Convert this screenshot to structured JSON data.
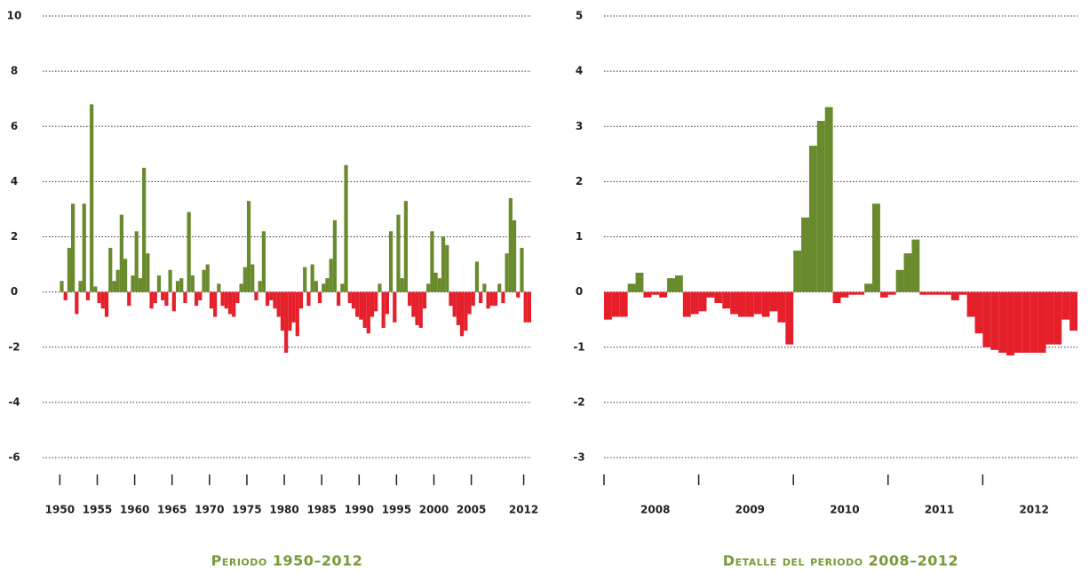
{
  "chart_data": [
    {
      "type": "bar",
      "title": "Periodo 1950–2012",
      "x": [
        1950,
        1950.5,
        1951,
        1951.5,
        1952,
        1952.5,
        1953,
        1953.5,
        1954,
        1954.5,
        1955,
        1955.5,
        1956,
        1956.5,
        1957,
        1957.5,
        1958,
        1958.5,
        1959,
        1959.5,
        1960,
        1960.5,
        1961,
        1961.5,
        1962,
        1962.5,
        1963,
        1963.5,
        1964,
        1964.5,
        1965,
        1965.5,
        1966,
        1966.5,
        1967,
        1967.5,
        1968,
        1968.5,
        1969,
        1969.5,
        1970,
        1970.5,
        1971,
        1971.5,
        1972,
        1972.5,
        1973,
        1973.5,
        1974,
        1974.5,
        1975,
        1975.5,
        1976,
        1976.5,
        1977,
        1977.5,
        1978,
        1978.5,
        1979,
        1979.5,
        1980,
        1980.5,
        1981,
        1981.5,
        1982,
        1982.5,
        1983,
        1983.5,
        1984,
        1984.5,
        1985,
        1985.5,
        1986,
        1986.5,
        1987,
        1987.5,
        1988,
        1988.5,
        1989,
        1989.5,
        1990,
        1990.5,
        1991,
        1991.5,
        1992,
        1992.5,
        1993,
        1993.5,
        1994,
        1994.5,
        1995,
        1995.5,
        1996,
        1996.5,
        1997,
        1997.5,
        1998,
        1998.5,
        1999,
        1999.5,
        2000,
        2000.5,
        2001,
        2001.5,
        2002,
        2002.5,
        2003,
        2003.5,
        2004,
        2004.5,
        2005,
        2005.5,
        2006,
        2006.5,
        2007,
        2007.5,
        2008,
        2008.5,
        2009,
        2009.5,
        2010,
        2010.5,
        2011,
        2011.5,
        2012,
        2012.5
      ],
      "values": [
        0.4,
        -0.3,
        1.6,
        3.2,
        -0.8,
        0.4,
        3.2,
        -0.3,
        6.8,
        0.2,
        -0.4,
        -0.6,
        -0.9,
        1.6,
        0.4,
        0.8,
        2.8,
        1.2,
        -0.5,
        0.6,
        2.2,
        0.5,
        4.5,
        1.4,
        -0.6,
        -0.4,
        0.6,
        -0.3,
        -0.5,
        0.8,
        -0.7,
        0.4,
        0.5,
        -0.4,
        2.9,
        0.6,
        -0.5,
        -0.3,
        0.8,
        1.0,
        -0.6,
        -0.9,
        0.3,
        -0.5,
        -0.6,
        -0.8,
        -0.9,
        -0.4,
        0.3,
        0.9,
        3.3,
        1.0,
        -0.3,
        0.4,
        2.2,
        -0.5,
        -0.3,
        -0.6,
        -0.9,
        -1.4,
        -2.2,
        -1.4,
        -1.1,
        -1.6,
        -0.6,
        0.9,
        -0.5,
        1.0,
        0.4,
        -0.4,
        0.3,
        0.5,
        1.2,
        2.6,
        -0.5,
        0.3,
        4.6,
        -0.4,
        -0.6,
        -0.9,
        -1.0,
        -1.3,
        -1.5,
        -0.9,
        -0.7,
        0.3,
        -1.3,
        -0.8,
        2.2,
        -1.1,
        2.8,
        0.5,
        3.3,
        -0.5,
        -0.9,
        -1.2,
        -1.3,
        -0.6,
        0.3,
        2.2,
        0.7,
        0.5,
        2.0,
        1.7,
        -0.5,
        -0.9,
        -1.2,
        -1.6,
        -1.4,
        -0.8,
        -0.5,
        1.1,
        -0.4,
        0.3,
        -0.6,
        -0.5,
        -0.5,
        0.3,
        -0.4,
        1.4,
        3.4,
        2.6,
        -0.2,
        1.6,
        -1.1,
        -1.1
      ],
      "xlim": [
        1947.7,
        2013
      ],
      "xticks": [
        1950,
        1955,
        1960,
        1965,
        1970,
        1975,
        1980,
        1985,
        1990,
        1995,
        2000,
        2005,
        2012
      ],
      "ylim": [
        -6.5,
        10.2
      ],
      "yticks": [
        -6,
        -4,
        -2,
        0,
        2,
        4,
        6,
        8,
        10
      ],
      "grid": true,
      "color_positive": "#6a8a2e",
      "color_negative": "#e5202b",
      "title_color": "#7a9a3a"
    },
    {
      "type": "bar",
      "title": "Detalle del periodo 2008–2012",
      "categories": [
        null,
        null,
        null,
        null,
        null,
        null,
        "2008",
        null,
        null,
        null,
        null,
        null,
        null,
        null,
        null,
        null,
        null,
        null,
        "2009",
        null,
        null,
        null,
        null,
        null,
        null,
        null,
        null,
        null,
        null,
        null,
        "2010",
        null,
        null,
        null,
        null,
        null,
        null,
        null,
        null,
        null,
        null,
        null,
        "2011",
        null,
        null,
        null,
        null,
        null,
        null,
        null,
        null,
        null,
        null,
        null,
        "2012",
        null,
        null,
        null,
        null,
        null
      ],
      "values": [
        -0.5,
        -0.45,
        -0.45,
        0.15,
        0.35,
        -0.1,
        -0.05,
        -0.1,
        0.25,
        0.3,
        -0.45,
        -0.4,
        -0.35,
        -0.1,
        -0.2,
        -0.3,
        -0.4,
        -0.45,
        -0.45,
        -0.4,
        -0.45,
        -0.35,
        -0.55,
        -0.95,
        0.75,
        1.35,
        2.65,
        3.1,
        3.35,
        -0.2,
        -0.1,
        -0.05,
        -0.05,
        0.15,
        1.6,
        -0.1,
        -0.05,
        0.4,
        0.7,
        0.95,
        -0.05,
        -0.05,
        -0.05,
        -0.05,
        -0.15,
        -0.05,
        -0.45,
        -0.75,
        -1.0,
        -1.05,
        -1.1,
        -1.15,
        -1.1,
        -1.1,
        -1.1,
        -1.1,
        -0.95,
        -0.95,
        -0.5,
        -0.7
      ],
      "ylim": [
        -3.3,
        5.1
      ],
      "yticks": [
        -3,
        -2,
        -1,
        0,
        1,
        2,
        3,
        4,
        5
      ],
      "grid": true,
      "color_positive": "#6a8a2e",
      "color_negative": "#e5202b",
      "title_color": "#7a9a3a"
    }
  ]
}
